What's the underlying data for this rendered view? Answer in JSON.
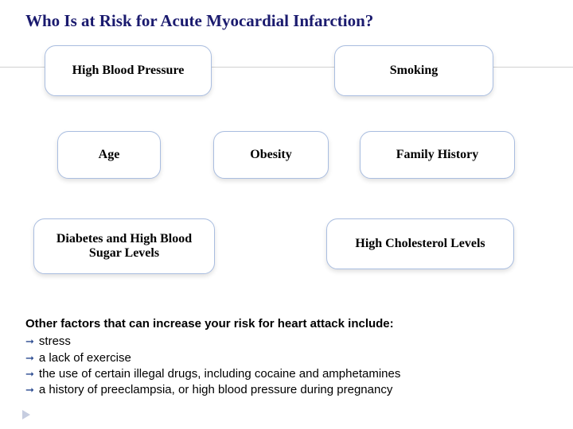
{
  "title": "Who Is at Risk for Acute Myocardial Infarction?",
  "boxes": {
    "hbp": "High Blood Pressure",
    "smk": "Smoking",
    "age": "Age",
    "obe": "Obesity",
    "fam": "Family History",
    "dia": "Diabetes and High Blood Sugar Levels",
    "cho": "High Cholesterol Levels"
  },
  "style": {
    "title_color": "#1a1a6e",
    "box_border": "#a9bde0",
    "box_bg": "#ffffff",
    "bullet_color": "#2a4a90",
    "text_color": "#000000",
    "hr_color": "#d0d0d0"
  },
  "footer": {
    "lead": "Other factors that can increase your risk for heart attack include:",
    "items": [
      "stress",
      "a lack of exercise",
      "the use of certain illegal drugs, including cocaine and amphetamines",
      "a history of preeclampsia, or high blood pressure during pregnancy"
    ]
  }
}
